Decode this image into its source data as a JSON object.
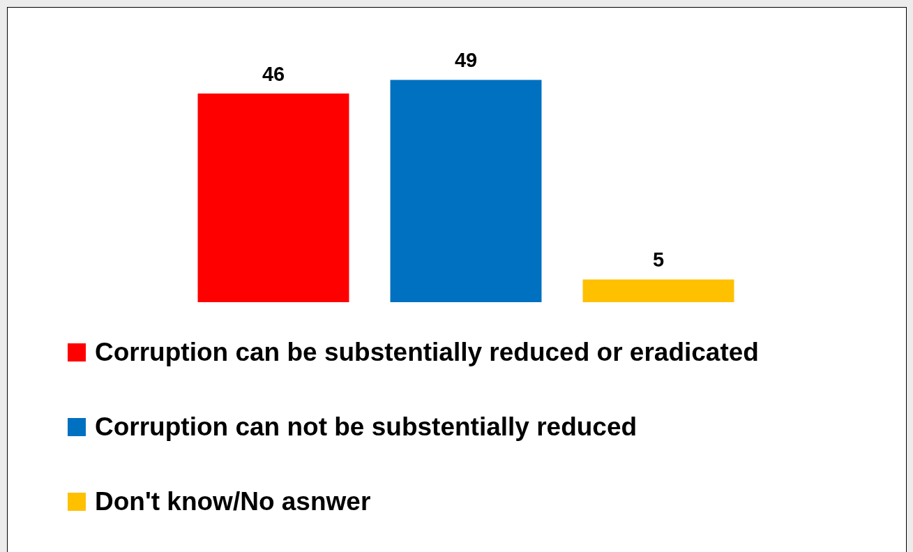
{
  "chart_data": {
    "type": "bar",
    "categories": [
      null
    ],
    "series": [
      {
        "name": "Corruption can be substentially reduced or eradicated",
        "color": "#ff0000",
        "values": [
          46
        ]
      },
      {
        "name": "Corruption can not be substentially reduced",
        "color": "#0070c0",
        "values": [
          49
        ]
      },
      {
        "name": "Don't know/No asnwer",
        "color": "#ffc000",
        "values": [
          5
        ]
      }
    ],
    "data_labels": true,
    "legend": "bottom"
  }
}
